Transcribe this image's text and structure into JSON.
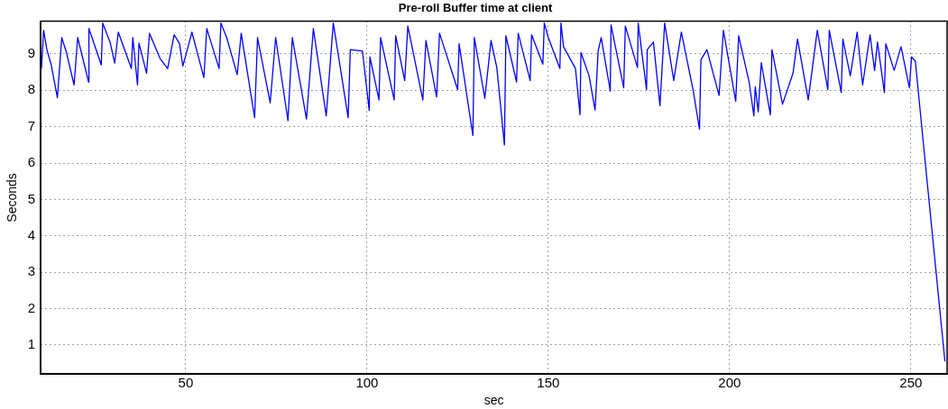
{
  "chart_data": {
    "type": "line",
    "title": "Pre-roll Buffer time at client",
    "xlabel": "sec",
    "ylabel": "Seconds",
    "xlim": [
      10,
      260
    ],
    "xticks": [
      50,
      100,
      150,
      200,
      250
    ],
    "ylim": [
      0.2,
      9.9
    ],
    "yticks": [
      1,
      2,
      3,
      4,
      5,
      6,
      7,
      8,
      9
    ],
    "grid": true,
    "legend": false,
    "marker": "none",
    "line_style": "solid",
    "series": [
      {
        "color": "#0000ff",
        "x": [
          10.2,
          10.8,
          11.7,
          12.9,
          14.6,
          15.8,
          17.1,
          19.2,
          20.2,
          23.2,
          23.3,
          26.7,
          27.1,
          29.2,
          30.4,
          31.4,
          35,
          35.4,
          36.7,
          37.1,
          39.2,
          40,
          42.9,
          45,
          46.8,
          48.3,
          49.2,
          50,
          51.7,
          55,
          55.8,
          59.2,
          59.7,
          61.3,
          64.2,
          65.3,
          69,
          69.8,
          73.3,
          74.8,
          78.2,
          79.4,
          83.3,
          85.2,
          88.75,
          90.7,
          94.8,
          95.4,
          98.75,
          100.6,
          100.8,
          103.3,
          103.75,
          107.5,
          107.9,
          110.4,
          111.25,
          115.4,
          116.25,
          119.2,
          120,
          125,
          125.4,
          129.2,
          129.6,
          132.5,
          134.2,
          135.8,
          137.9,
          138.3,
          141.25,
          141.7,
          145,
          145.4,
          148.5,
          148.9,
          150,
          153.2,
          153.5,
          154.2,
          157.5,
          158.75,
          159,
          161.25,
          162.9,
          163.75,
          164.6,
          167.1,
          167.3,
          170.8,
          171.25,
          174.6,
          174.8,
          177.1,
          177.3,
          179,
          180.8,
          182.1,
          184.6,
          186.7,
          190,
          191.7,
          192.1,
          193.75,
          197.1,
          198.3,
          201.7,
          202.5,
          205.4,
          206.7,
          207.1,
          207.9,
          208.75,
          211.25,
          211.7,
          214.6,
          217.5,
          218.75,
          221.7,
          224.2,
          227.1,
          227.5,
          230.8,
          231.25,
          233.3,
          235.2,
          236.7,
          238.75,
          240,
          240.8,
          242.7,
          243.1,
          245.4,
          247.3,
          249.6,
          250.2,
          251.25,
          253.3,
          259.4
        ],
        "values": [
          8.6,
          9.65,
          9.12,
          8.7,
          7.8,
          9.45,
          9.04,
          8.15,
          9.45,
          8.23,
          9.7,
          8.7,
          9.85,
          9.3,
          8.75,
          9.6,
          8.6,
          9.45,
          8.15,
          9.3,
          8.47,
          9.57,
          8.88,
          8.6,
          9.53,
          9.28,
          8.67,
          8.96,
          9.6,
          8.35,
          9.7,
          8.6,
          9.85,
          9.45,
          8.43,
          9.57,
          7.25,
          9.45,
          7.66,
          9.45,
          7.17,
          9.45,
          7.21,
          9.7,
          7.3,
          9.85,
          7.25,
          9.12,
          9.08,
          7.45,
          8.92,
          7.74,
          9.45,
          7.74,
          9.5,
          8.27,
          9.77,
          7.74,
          9.37,
          7.82,
          9.57,
          8.02,
          9.28,
          6.76,
          9.45,
          7.78,
          9.37,
          8.63,
          6.5,
          9.5,
          8.23,
          9.57,
          8.27,
          9.53,
          8.72,
          9.85,
          9.45,
          8.6,
          9.85,
          9.2,
          8.6,
          7.33,
          9.04,
          8.4,
          7.46,
          9.08,
          9.45,
          7.98,
          9.8,
          8.07,
          9.77,
          8.63,
          9.85,
          8.02,
          9.12,
          9.33,
          7.58,
          9.85,
          8.27,
          9.6,
          7.98,
          6.93,
          8.84,
          9.12,
          7.86,
          9.65,
          7.7,
          9.5,
          8.23,
          7.3,
          8.1,
          7.41,
          8.76,
          7.33,
          9.12,
          7.62,
          8.47,
          9.41,
          7.74,
          9.65,
          8.02,
          9.65,
          7.94,
          9.41,
          8.4,
          9.6,
          8.15,
          9.53,
          8.55,
          9.33,
          7.94,
          9.28,
          8.55,
          9.2,
          8.07,
          8.92,
          8.8,
          6.7,
          0.55
        ]
      }
    ]
  }
}
